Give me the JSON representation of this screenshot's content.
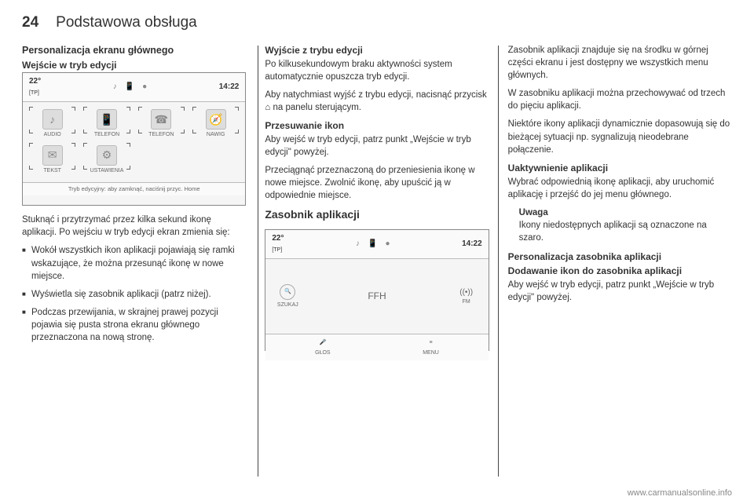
{
  "page_number": "24",
  "chapter": "Podstawowa obsługa",
  "col1": {
    "h3": "Personalizacja ekranu głównego",
    "h4": "Wejście w tryb edycji",
    "screenshot": {
      "temp": "22°",
      "tp": "[TP]",
      "time": "14:22",
      "apps": [
        {
          "label": "AUDIO",
          "icon": "♪"
        },
        {
          "label": "TELEFON",
          "icon": "📱"
        },
        {
          "label": "TELEFON",
          "icon": "☎"
        },
        {
          "label": "NAWIG",
          "icon": "🧭"
        },
        {
          "label": "TEKST",
          "icon": "✉"
        },
        {
          "label": "USTAWIENIA",
          "icon": "⚙"
        }
      ],
      "bottombar": "Tryb edycyjny: aby zamknąć, naciśnij przyc. Home"
    },
    "p1": "Stuknąć i przytrzymać przez kilka sekund ikonę aplikacji. Po wejściu w tryb edycji ekran zmienia się:",
    "li1": "Wokół wszystkich ikon aplikacji pojawiają się ramki wskazujące, że można przesunąć ikonę w nowe miejsce.",
    "li2": "Wyświetla się zasobnik aplikacji (patrz niżej).",
    "li3": "Podczas przewijania, w skrajnej prawej pozycji pojawia się pusta strona ekranu głównego przeznaczona na nową stronę."
  },
  "col2": {
    "h4a": "Wyjście z trybu edycji",
    "p1": "Po kilkusekundowym braku aktywności system automatycznie opuszcza tryb edycji.",
    "p2": "Aby natychmiast wyjść z trybu edycji, nacisnąć przycisk ⌂ na panelu sterującym.",
    "h4b": "Przesuwanie ikon",
    "p3": "Aby wejść w tryb edycji, patrz punkt „Wejście w tryb edycji\" powyżej.",
    "p4": "Przeciągnąć przeznaczoną do przeniesienia ikonę w nowe miejsce. Zwolnić ikonę, aby upuścić ją w odpowiednie miejsce.",
    "section_title": "Zasobnik aplikacji",
    "screenshot": {
      "temp": "22°",
      "tp": "[TP]",
      "time": "14:22",
      "search_label": "SZUKAJ",
      "station": "FFH",
      "fm_label": "FM",
      "voice_label": "GŁOS",
      "menu_label": "MENU"
    }
  },
  "col3": {
    "p1": "Zasobnik aplikacji znajduje się na środku w górnej części ekranu i jest dostępny we wszystkich menu głównych.",
    "p2": "W zasobniku aplikacji można przechowywać od trzech do pięciu aplikacji.",
    "p3": "Niektóre ikony aplikacji dynamicznie dopasowują się do bieżącej sytuacji np. sygnalizują nieodebrane połączenie.",
    "h4a": "Uaktywnienie aplikacji",
    "p4": "Wybrać odpowiednią ikonę aplikacji, aby uruchomić aplikację i przejść do jej menu głównego.",
    "note_h": "Uwaga",
    "note_p": "Ikony niedostępnych aplikacji są oznaczone na szaro.",
    "h4b": "Personalizacja zasobnika aplikacji",
    "h4c": "Dodawanie ikon do zasobnika aplikacji",
    "p5": "Aby wejść w tryb edycji, patrz punkt „Wejście w tryb edycji\" powyżej."
  },
  "footer": "www.carmanualsonline.info"
}
